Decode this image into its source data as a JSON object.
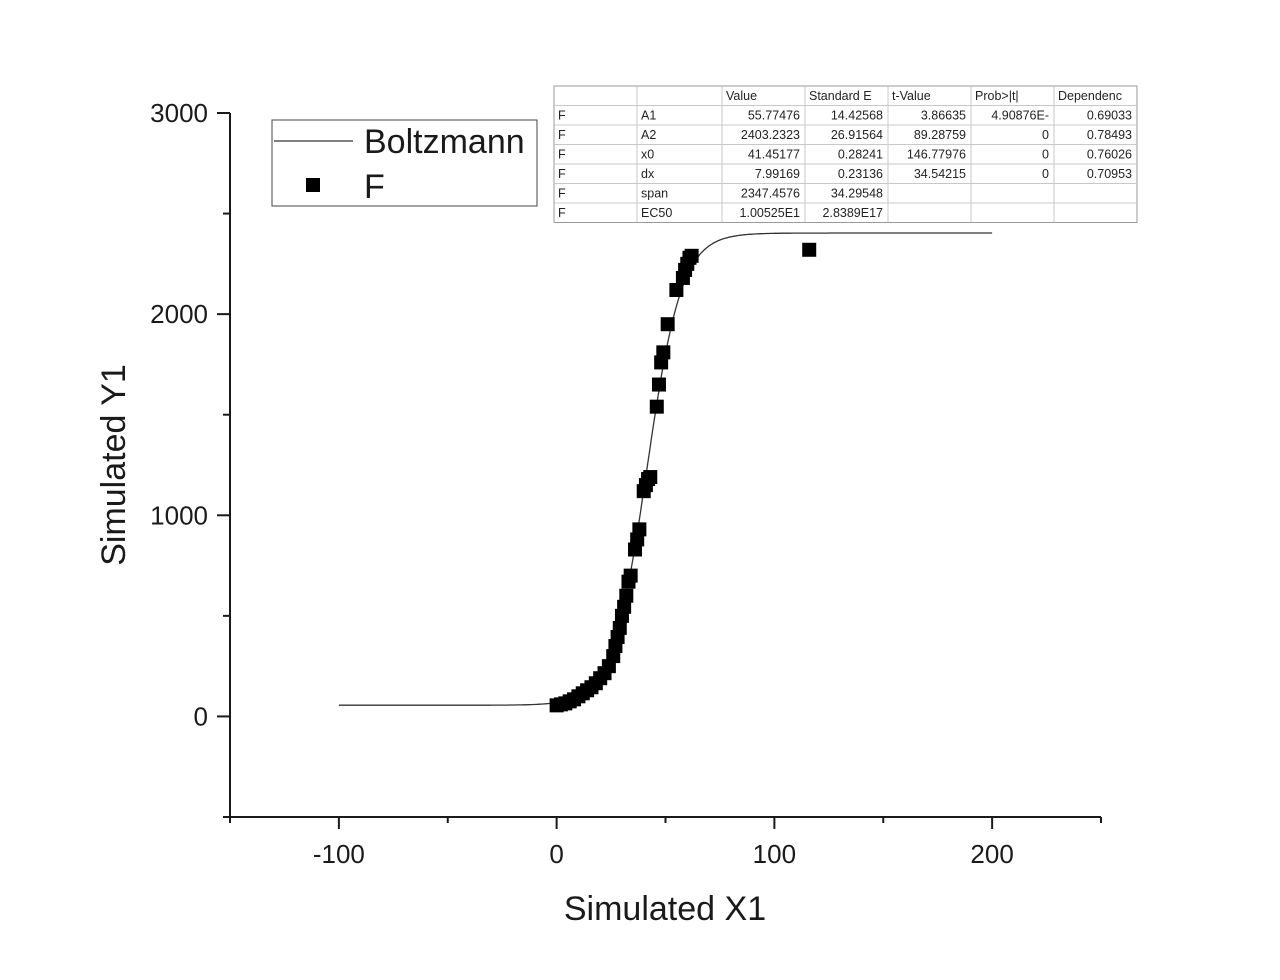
{
  "chart_data": {
    "type": "scatter",
    "title": "",
    "xlabel": "Simulated X1",
    "ylabel": "Simulated Y1",
    "xlim": [
      -150,
      250
    ],
    "ylim": [
      -500,
      3000
    ],
    "x_ticks": [
      -100,
      0,
      100,
      200
    ],
    "y_ticks": [
      0,
      1000,
      2000,
      3000
    ],
    "legend": {
      "position": "top-left",
      "entries": [
        "Boltzmann",
        "F"
      ]
    },
    "series": [
      {
        "name": "F",
        "marker": "square",
        "points": [
          [
            0,
            55
          ],
          [
            2,
            60
          ],
          [
            4,
            65
          ],
          [
            6,
            75
          ],
          [
            8,
            85
          ],
          [
            10,
            100
          ],
          [
            12,
            115
          ],
          [
            14,
            130
          ],
          [
            16,
            145
          ],
          [
            18,
            165
          ],
          [
            20,
            190
          ],
          [
            22,
            215
          ],
          [
            24,
            250
          ],
          [
            26,
            300
          ],
          [
            27,
            350
          ],
          [
            28,
            395
          ],
          [
            29,
            440
          ],
          [
            30,
            500
          ],
          [
            31,
            545
          ],
          [
            32,
            600
          ],
          [
            33,
            670
          ],
          [
            34,
            700
          ],
          [
            36,
            830
          ],
          [
            37,
            880
          ],
          [
            38,
            930
          ],
          [
            40,
            1120
          ],
          [
            41,
            1150
          ],
          [
            42,
            1180
          ],
          [
            43,
            1190
          ],
          [
            46,
            1540
          ],
          [
            47,
            1650
          ],
          [
            48,
            1760
          ],
          [
            49,
            1810
          ],
          [
            51,
            1950
          ],
          [
            55,
            2120
          ],
          [
            58,
            2180
          ],
          [
            59,
            2220
          ],
          [
            60,
            2250
          ],
          [
            61,
            2280
          ],
          [
            62,
            2290
          ],
          [
            116,
            2320
          ]
        ]
      },
      {
        "name": "Boltzmann",
        "type": "line",
        "model": {
          "A1": 55.77476,
          "A2": 2403.2323,
          "x0": 41.45177,
          "dx": 7.99169
        },
        "x_range": [
          -100,
          200
        ]
      }
    ],
    "table": {
      "headers": [
        "",
        "",
        "Value",
        "Standard E",
        "t-Value",
        "Prob>|t|",
        "Dependenc"
      ],
      "rows": [
        [
          "F",
          "A1",
          "55.77476",
          "14.42568",
          "3.86635",
          "4.90876E-",
          "0.69033"
        ],
        [
          "F",
          "A2",
          "2403.2323",
          "26.91564",
          "89.28759",
          "0",
          "0.78493"
        ],
        [
          "F",
          "x0",
          "41.45177",
          "0.28241",
          "146.77976",
          "0",
          "0.76026"
        ],
        [
          "F",
          "dx",
          "7.99169",
          "0.23136",
          "34.54215",
          "0",
          "0.70953"
        ],
        [
          "F",
          "span",
          "2347.4576",
          "34.29548",
          "",
          "",
          ""
        ],
        [
          "F",
          "EC50",
          "1.00525E1",
          "2.8389E17",
          "",
          "",
          ""
        ]
      ]
    }
  },
  "colors": {
    "line": "#333333",
    "marker": "#000000",
    "axis": "#1a1a1a",
    "table_border": "#999999"
  }
}
